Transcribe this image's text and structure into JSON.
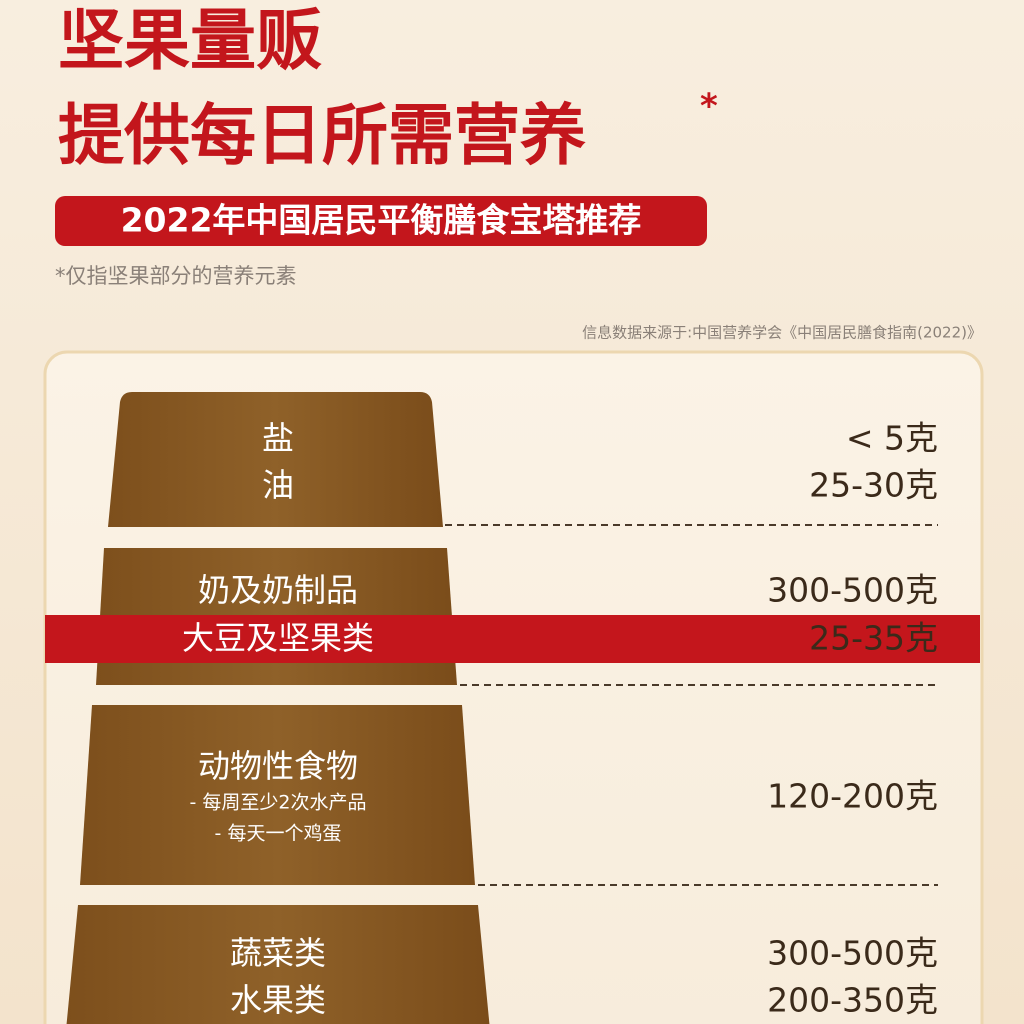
{
  "header": {
    "title_line_1": "坚果量贩",
    "title_line_2": "提供每日所需营养",
    "asterisk": "*",
    "badge": "2022年中国居民平衡膳食宝塔推荐",
    "note": "*仅指坚果部分的营养元素",
    "source": "信息数据来源于:中国营养学会《中国居民膳食指南(2022)》"
  },
  "pyramid": [
    {
      "items": [
        {
          "label": "盐",
          "amount": "< 5克"
        },
        {
          "label": "油",
          "amount": "25-30克"
        }
      ]
    },
    {
      "items": [
        {
          "label": "奶及奶制品",
          "amount": "300-500克"
        },
        {
          "label": "大豆及坚果类",
          "amount": "25-35克"
        }
      ]
    },
    {
      "items": [
        {
          "label": "动物性食物",
          "notes": [
            "- 每周至少2次水产品",
            "- 每天一个鸡蛋"
          ],
          "amount": "120-200克"
        }
      ]
    },
    {
      "items": [
        {
          "label": "蔬菜类",
          "amount": "300-500克"
        },
        {
          "label": "水果类",
          "amount": "200-350克"
        }
      ]
    }
  ]
}
